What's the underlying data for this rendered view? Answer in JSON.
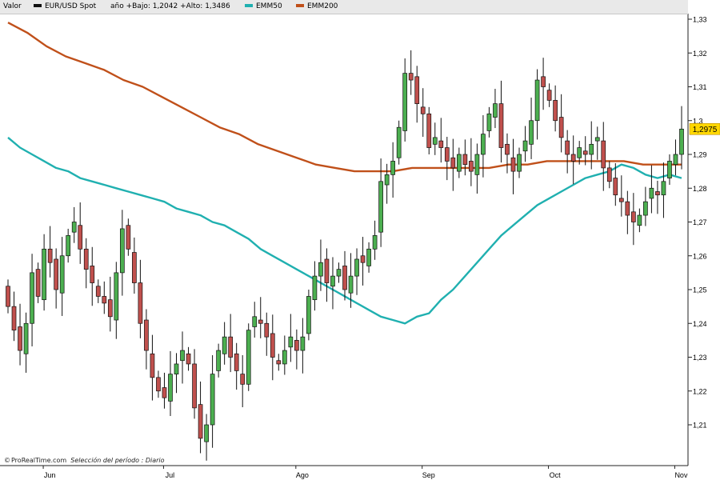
{
  "legend": {
    "valor": "Valor",
    "instrument": "EUR/USD Spot",
    "range": "año +Bajo: 1,2042 +Alto: 1,3486",
    "ema50": "EMM50",
    "ema200": "EMM200"
  },
  "footer": {
    "brand": "ProRealTime.com",
    "period": "Selección del período : Diario"
  },
  "last_price_label": "1,2975",
  "colors": {
    "up": "#4caf50",
    "down": "#c0504d",
    "ema50": "#20b0b0",
    "ema200": "#c0501a",
    "last_badge": "#ffd700"
  },
  "chart_data": {
    "type": "candlestick",
    "title": "EUR/USD Spot",
    "period": "Diario",
    "ylim": [
      1.2,
      1.335
    ],
    "y_ticks": [
      1.21,
      1.22,
      1.23,
      1.24,
      1.25,
      1.26,
      1.27,
      1.28,
      1.29,
      1.3,
      1.31,
      1.32,
      1.33
    ],
    "y_tick_labels": [
      "1,21",
      "1,22",
      "1,23",
      "1,24",
      "1,25",
      "1,26",
      "1,27",
      "1,28",
      "1,29",
      "1,3",
      "1,31",
      "1,32",
      "1,33"
    ],
    "x_labels": [
      {
        "label": "Jun",
        "index": 4
      },
      {
        "label": "Jul",
        "index": 24
      },
      {
        "label": "Ago",
        "index": 46
      },
      {
        "label": "Sep",
        "index": 67
      },
      {
        "label": "Oct",
        "index": 88
      },
      {
        "label": "Nov",
        "index": 109
      }
    ],
    "last_price": 1.2975,
    "closes": [
      1.245,
      1.238,
      1.232,
      1.24,
      1.255,
      1.248,
      1.262,
      1.258,
      1.25,
      1.26,
      1.266,
      1.27,
      1.262,
      1.256,
      1.252,
      1.248,
      1.246,
      1.242,
      1.255,
      1.268,
      1.262,
      1.252,
      1.24,
      1.232,
      1.224,
      1.22,
      1.218,
      1.225,
      1.228,
      1.232,
      1.228,
      1.215,
      1.206,
      1.21,
      1.225,
      1.232,
      1.236,
      1.23,
      1.226,
      1.222,
      1.238,
      1.242,
      1.24,
      1.236,
      1.23,
      1.228,
      1.232,
      1.236,
      1.232,
      1.236,
      1.248,
      1.254,
      1.258,
      1.252,
      1.254,
      1.256,
      1.25,
      1.254,
      1.259,
      1.258,
      1.262,
      1.266,
      1.282,
      1.284,
      1.288,
      1.298,
      1.314,
      1.312,
      1.305,
      1.302,
      1.292,
      1.295,
      1.292,
      1.288,
      1.286,
      1.29,
      1.287,
      1.285,
      1.29,
      1.296,
      1.302,
      1.305,
      1.292,
      1.29,
      1.285,
      1.29,
      1.294,
      1.3,
      1.312,
      1.31,
      1.306,
      1.3,
      1.295,
      1.29,
      1.288,
      1.292,
      1.29,
      1.293,
      1.295,
      1.286,
      1.282,
      1.278,
      1.276,
      1.272,
      1.27,
      1.272,
      1.276,
      1.28,
      1.278,
      1.282,
      1.288,
      1.29,
      1.2975
    ],
    "ema50": [
      1.295,
      1.292,
      1.29,
      1.288,
      1.286,
      1.285,
      1.283,
      1.282,
      1.281,
      1.28,
      1.279,
      1.278,
      1.277,
      1.276,
      1.274,
      1.273,
      1.272,
      1.27,
      1.269,
      1.267,
      1.265,
      1.262,
      1.26,
      1.258,
      1.256,
      1.254,
      1.252,
      1.25,
      1.248,
      1.246,
      1.244,
      1.242,
      1.241,
      1.24,
      1.242,
      1.243,
      1.247,
      1.25,
      1.254,
      1.258,
      1.262,
      1.266,
      1.269,
      1.272,
      1.275,
      1.277,
      1.279,
      1.281,
      1.283,
      1.284,
      1.285,
      1.287,
      1.286,
      1.284,
      1.283,
      1.284,
      1.283
    ],
    "ema200": [
      1.329,
      1.326,
      1.322,
      1.319,
      1.317,
      1.315,
      1.312,
      1.31,
      1.307,
      1.304,
      1.301,
      1.298,
      1.296,
      1.293,
      1.291,
      1.289,
      1.287,
      1.286,
      1.285,
      1.285,
      1.285,
      1.286,
      1.286,
      1.286,
      1.286,
      1.286,
      1.287,
      1.287,
      1.288,
      1.288,
      1.288,
      1.288,
      1.288,
      1.287,
      1.287,
      1.287
    ]
  }
}
